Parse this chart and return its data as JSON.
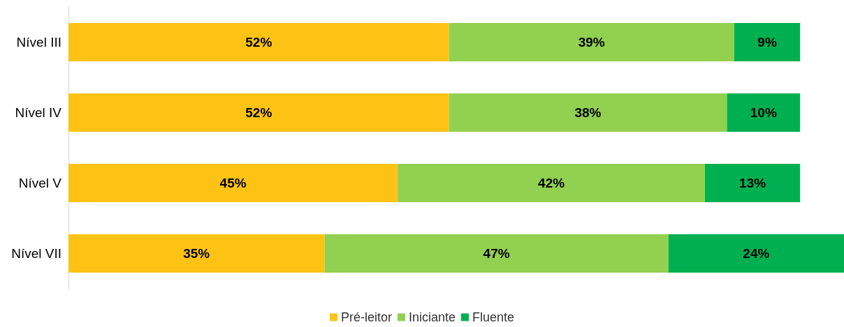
{
  "chart_data": {
    "type": "bar",
    "orientation": "horizontal",
    "stacked": true,
    "legend": "bottom",
    "categories": [
      "Nível III",
      "Nível IV",
      "Nível V",
      "Nível VII"
    ],
    "series": [
      {
        "name": "Pré-leitor",
        "color": "#fcc314",
        "values": [
          52,
          52,
          45,
          35
        ],
        "value_labels": [
          "52%",
          "52%",
          "45%",
          "35%"
        ]
      },
      {
        "name": "Iniciante",
        "color": "#92d050",
        "values": [
          39,
          38,
          42,
          47
        ],
        "value_labels": [
          "39%",
          "38%",
          "42%",
          "47%"
        ]
      },
      {
        "name": "Fluente",
        "color": "#00b050",
        "values": [
          9,
          10,
          13,
          24
        ],
        "value_labels": [
          "9%",
          "10%",
          "13%",
          "24%"
        ]
      }
    ]
  }
}
